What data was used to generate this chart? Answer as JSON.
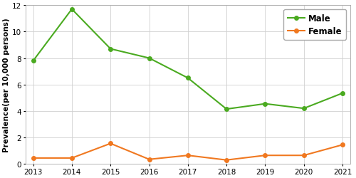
{
  "years": [
    2013,
    2014,
    2015,
    2016,
    2017,
    2018,
    2019,
    2020,
    2021
  ],
  "male_values": [
    7.8,
    11.7,
    8.7,
    8.0,
    6.5,
    4.15,
    4.55,
    4.2,
    5.35
  ],
  "female_values": [
    0.45,
    0.45,
    1.55,
    0.35,
    0.65,
    0.3,
    0.65,
    0.65,
    1.45
  ],
  "male_color": "#4aaa20",
  "female_color": "#f07820",
  "male_label": "Male",
  "female_label": "Female",
  "ylabel": "Prevalence(per 10,000 persons)",
  "ylim": [
    0,
    12
  ],
  "yticks": [
    0,
    2,
    4,
    6,
    8,
    10,
    12
  ],
  "xlim": [
    2013,
    2021
  ],
  "background_color": "#ffffff",
  "grid_color": "#d0d0d0",
  "marker": "o",
  "marker_size": 4,
  "linewidth": 1.5,
  "legend_fontsize": 8.5,
  "axis_fontsize": 7.5,
  "ylabel_fontsize": 7.5
}
